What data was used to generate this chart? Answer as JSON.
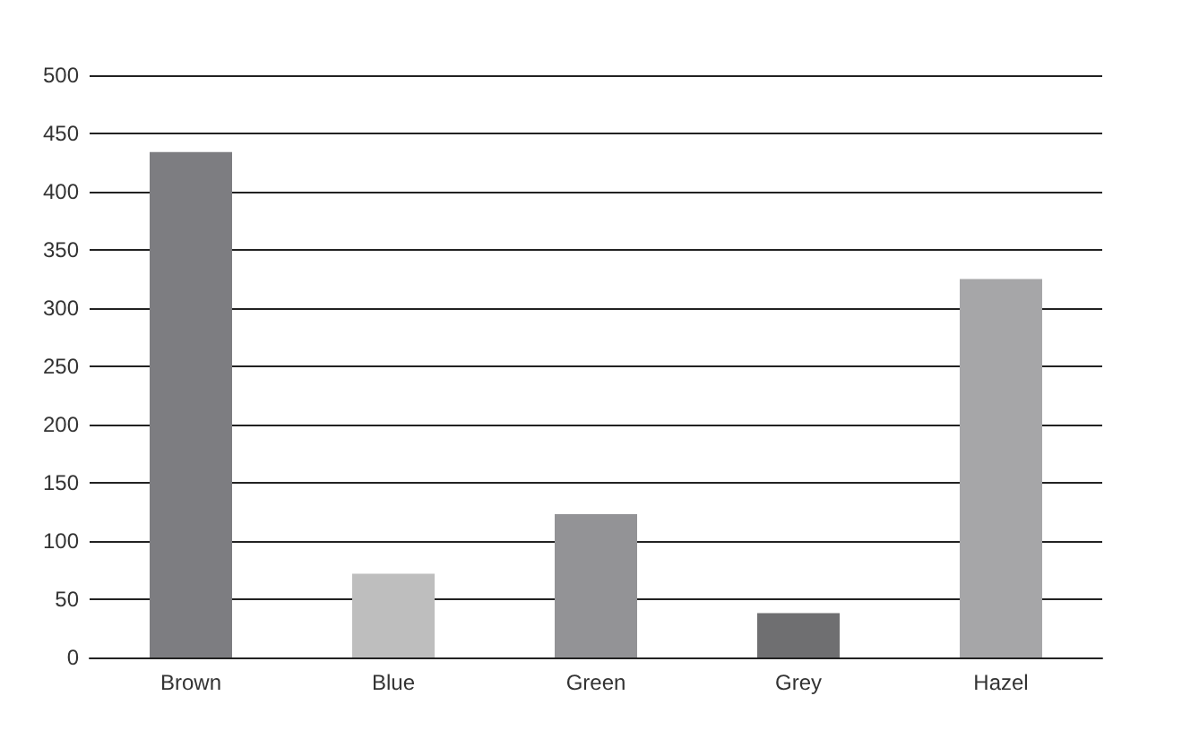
{
  "chart_data": {
    "type": "bar",
    "categories": [
      "Brown",
      "Blue",
      "Green",
      "Grey",
      "Hazel"
    ],
    "values": [
      434,
      72,
      123,
      38,
      325
    ],
    "colors": [
      "#7d7d81",
      "#bebebe",
      "#939396",
      "#6f6f71",
      "#a6a6a8"
    ],
    "ylim": [
      0,
      500
    ],
    "yticks": [
      0,
      50,
      100,
      150,
      200,
      250,
      300,
      350,
      400,
      450,
      500
    ],
    "grid": "y"
  }
}
